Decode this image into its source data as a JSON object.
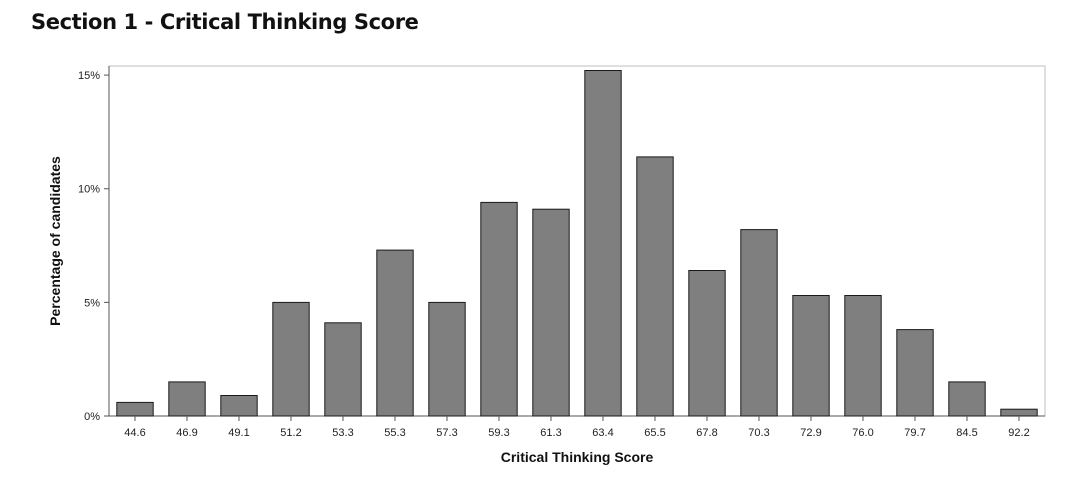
{
  "page": {
    "title": "Section 1 - Critical Thinking Score"
  },
  "colors": {
    "bar_fill": "#7f7f7f",
    "bar_stroke": "#1a1a1a",
    "frame": "#bfbfbf",
    "axis": "#555555"
  },
  "chart_data": {
    "type": "bar",
    "title": "Section 1 - Critical Thinking Score",
    "xlabel": "Critical Thinking Score",
    "ylabel": "Percentage of candidates",
    "categories": [
      "44.6",
      "46.9",
      "49.1",
      "51.2",
      "53.3",
      "55.3",
      "57.3",
      "59.3",
      "61.3",
      "63.4",
      "65.5",
      "67.8",
      "70.3",
      "72.9",
      "76.0",
      "79.7",
      "84.5",
      "92.2"
    ],
    "values": [
      0.6,
      1.5,
      0.9,
      5.0,
      4.1,
      7.3,
      5.0,
      9.4,
      9.1,
      15.2,
      11.4,
      6.4,
      8.2,
      5.3,
      5.3,
      3.8,
      1.5,
      0.3
    ],
    "ylim": [
      0,
      15.4
    ],
    "yticks": [
      0,
      5,
      10,
      15
    ],
    "ytick_labels": [
      "0%",
      "5%",
      "10%",
      "15%"
    ],
    "grid": false,
    "legend": "none"
  }
}
